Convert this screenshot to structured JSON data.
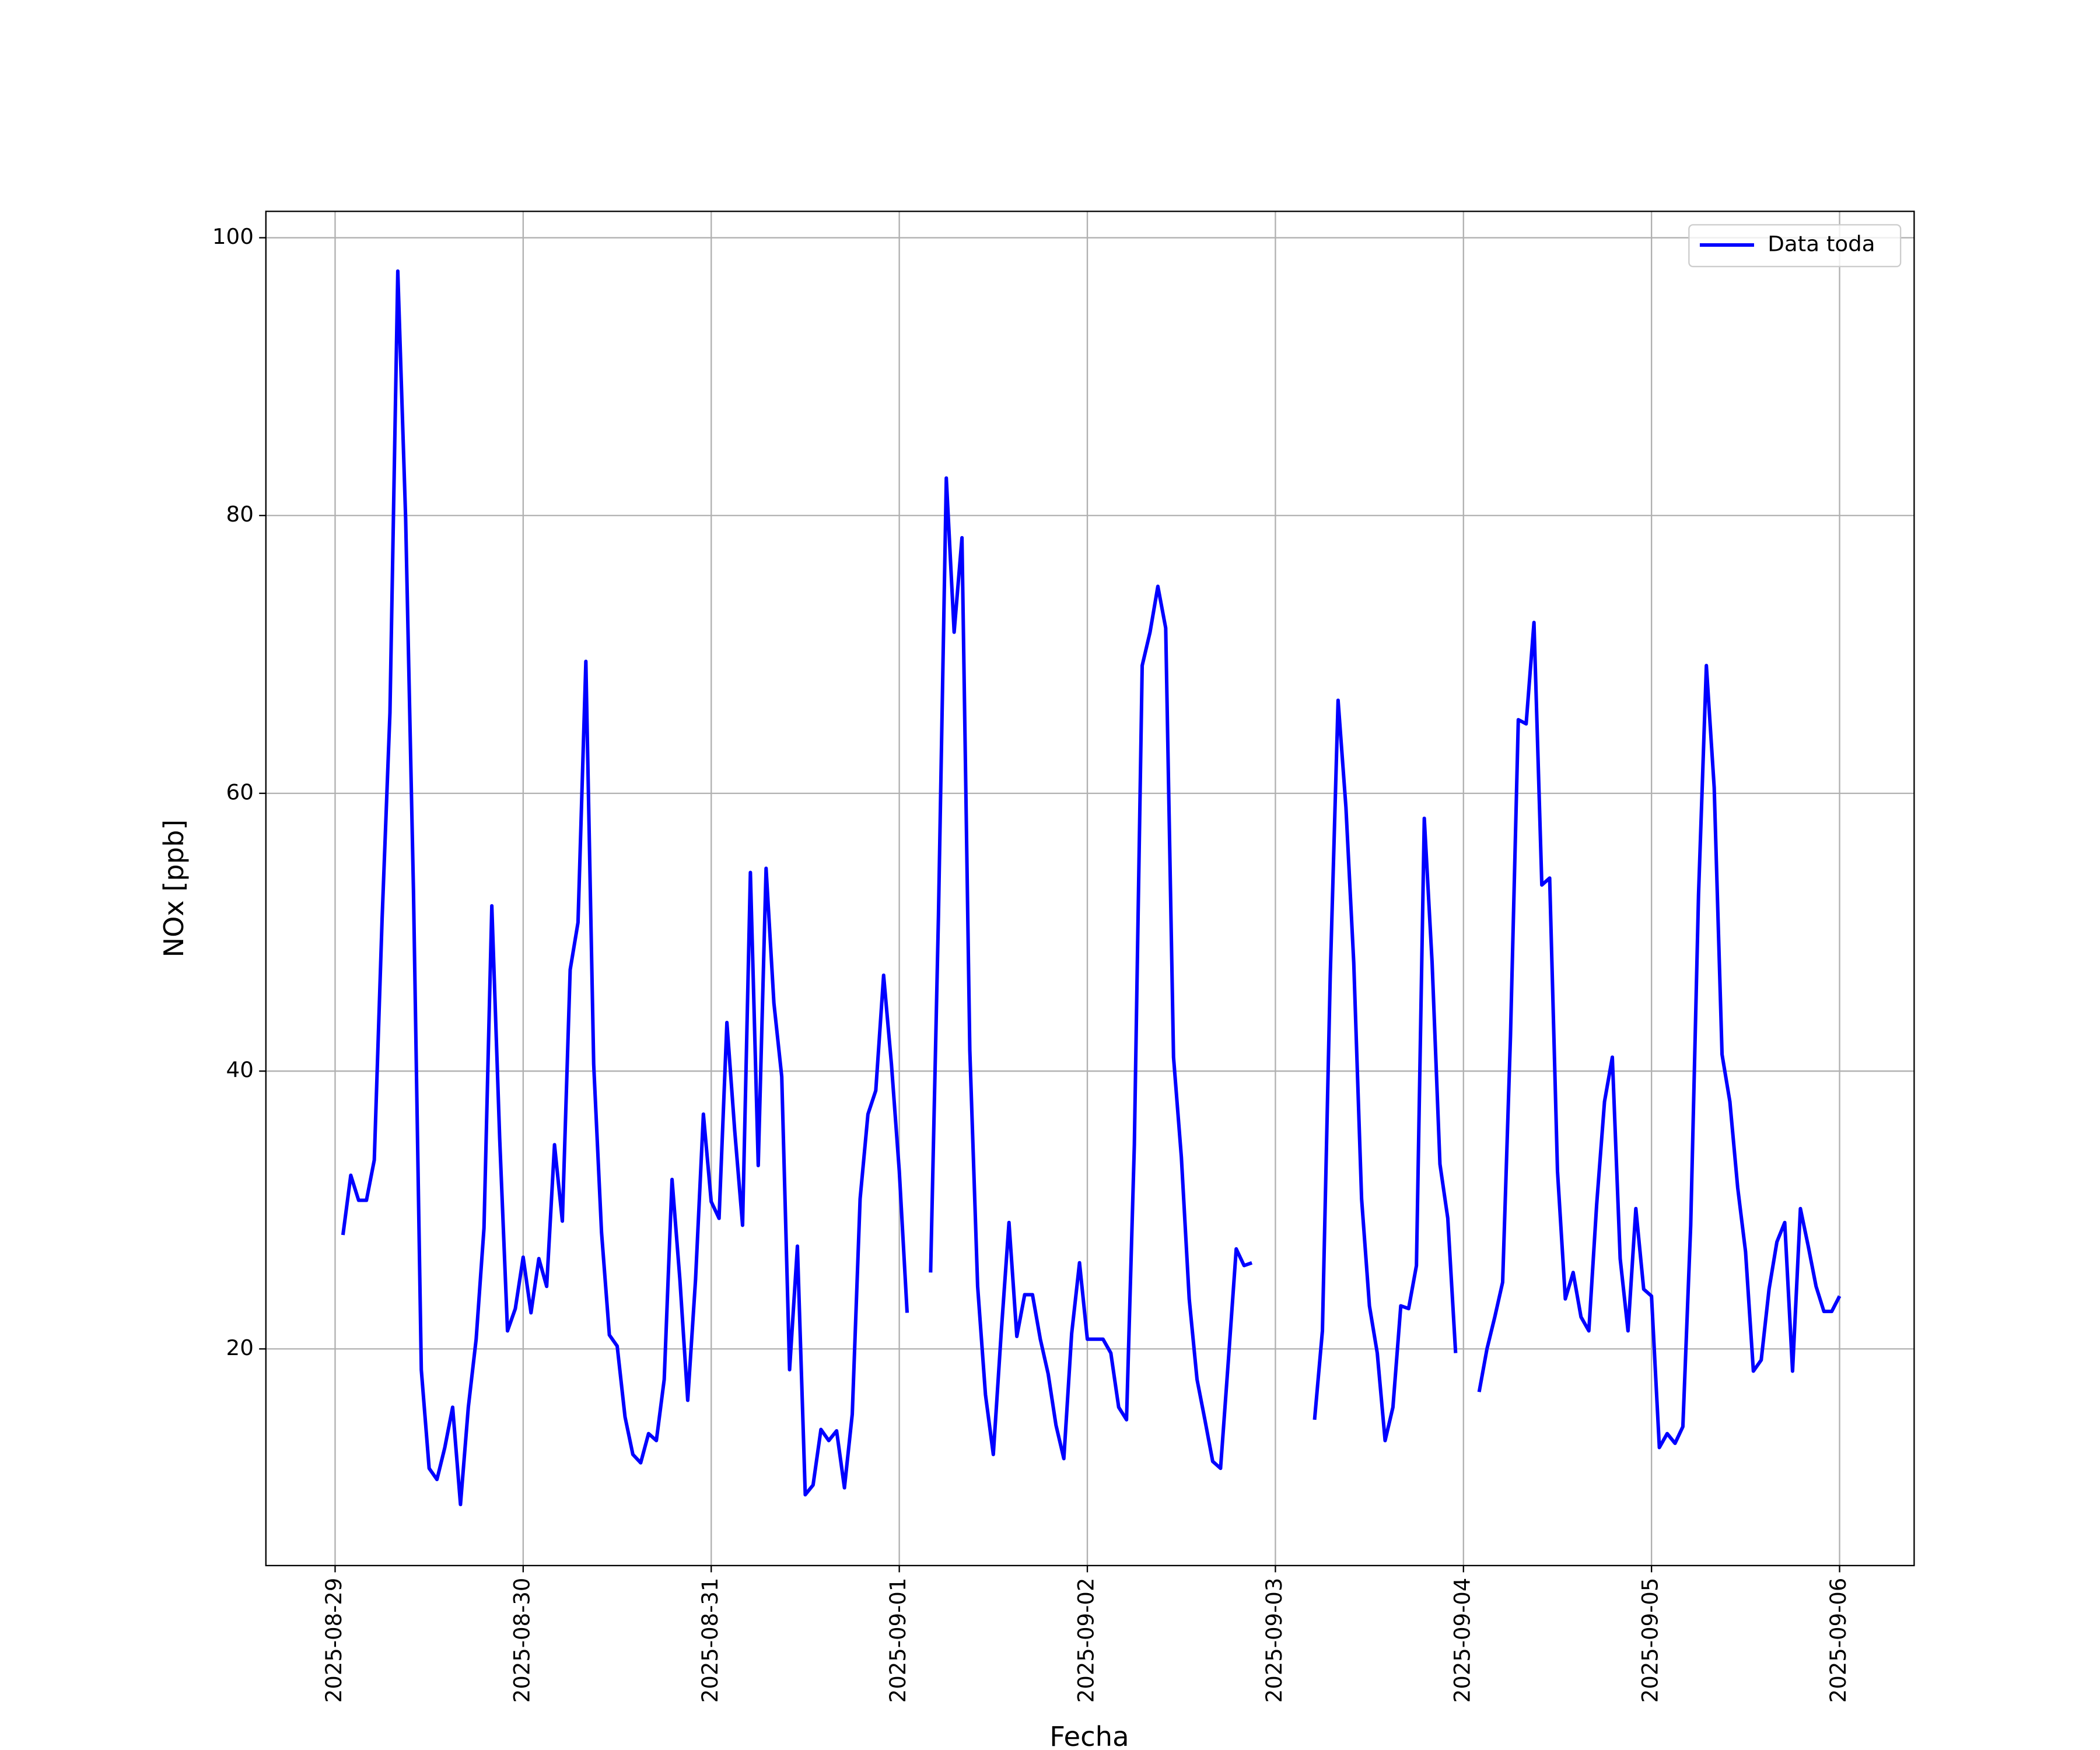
{
  "chart_data": {
    "type": "line",
    "xlabel": "Fecha",
    "ylabel": "NOx [ppb]",
    "legend": "upper right",
    "grid": true,
    "xlim": [
      "2025-08-28 15:10",
      "2025-09-06 09:31"
    ],
    "xticks": [
      "2025-08-29",
      "2025-08-30",
      "2025-08-31",
      "2025-09-01",
      "2025-09-02",
      "2025-09-03",
      "2025-09-04",
      "2025-09-05",
      "2025-09-06"
    ],
    "ylim": [
      4.4,
      101.9
    ],
    "yticks": [
      20,
      40,
      60,
      80,
      100
    ],
    "x": [
      "2025-08-29 01:00",
      "2025-08-29 02:00",
      "2025-08-29 03:00",
      "2025-08-29 04:00",
      "2025-08-29 05:00",
      "2025-08-29 06:00",
      "2025-08-29 07:00",
      "2025-08-29 08:00",
      "2025-08-29 09:00",
      "2025-08-29 10:00",
      "2025-08-29 11:00",
      "2025-08-29 12:00",
      "2025-08-29 13:00",
      "2025-08-29 14:00",
      "2025-08-29 15:00",
      "2025-08-29 16:00",
      "2025-08-29 17:00",
      "2025-08-29 18:00",
      "2025-08-29 19:00",
      "2025-08-29 20:00",
      "2025-08-29 21:00",
      "2025-08-29 22:00",
      "2025-08-29 23:00",
      "2025-08-30 00:00",
      "2025-08-30 01:00",
      "2025-08-30 02:00",
      "2025-08-30 03:00",
      "2025-08-30 04:00",
      "2025-08-30 05:00",
      "2025-08-30 06:00",
      "2025-08-30 07:00",
      "2025-08-30 08:00",
      "2025-08-30 09:00",
      "2025-08-30 10:00",
      "2025-08-30 11:00",
      "2025-08-30 12:00",
      "2025-08-30 13:00",
      "2025-08-30 14:00",
      "2025-08-30 15:00",
      "2025-08-30 16:00",
      "2025-08-30 17:00",
      "2025-08-30 18:00",
      "2025-08-30 19:00",
      "2025-08-30 20:00",
      "2025-08-30 21:00",
      "2025-08-30 22:00",
      "2025-08-30 23:00",
      "2025-08-31 00:00",
      "2025-08-31 01:00",
      "2025-08-31 02:00",
      "2025-08-31 03:00",
      "2025-08-31 04:00",
      "2025-08-31 05:00",
      "2025-08-31 06:00",
      "2025-08-31 07:00",
      "2025-08-31 08:00",
      "2025-08-31 09:00",
      "2025-08-31 10:00",
      "2025-08-31 11:00",
      "2025-08-31 12:00",
      "2025-08-31 13:00",
      "2025-08-31 14:00",
      "2025-08-31 15:00",
      "2025-08-31 16:00",
      "2025-08-31 17:00",
      "2025-08-31 18:00",
      "2025-08-31 19:00",
      "2025-08-31 20:00",
      "2025-08-31 21:00",
      "2025-08-31 22:00",
      "2025-08-31 23:00",
      "2025-09-01 00:00",
      "2025-09-01 01:00",
      "2025-09-01 02:00",
      "2025-09-01 03:00",
      "2025-09-01 04:00",
      "2025-09-01 05:00",
      "2025-09-01 06:00",
      "2025-09-01 07:00",
      "2025-09-01 08:00",
      "2025-09-01 09:00",
      "2025-09-01 10:00",
      "2025-09-01 11:00",
      "2025-09-01 12:00",
      "2025-09-01 13:00",
      "2025-09-01 14:00",
      "2025-09-01 15:00",
      "2025-09-01 16:00",
      "2025-09-01 17:00",
      "2025-09-01 18:00",
      "2025-09-01 19:00",
      "2025-09-01 20:00",
      "2025-09-01 21:00",
      "2025-09-01 22:00",
      "2025-09-01 23:00",
      "2025-09-02 00:00",
      "2025-09-02 01:00",
      "2025-09-02 02:00",
      "2025-09-02 03:00",
      "2025-09-02 04:00",
      "2025-09-02 05:00",
      "2025-09-02 06:00",
      "2025-09-02 07:00",
      "2025-09-02 08:00",
      "2025-09-02 09:00",
      "2025-09-02 10:00",
      "2025-09-02 11:00",
      "2025-09-02 12:00",
      "2025-09-02 13:00",
      "2025-09-02 14:00",
      "2025-09-02 15:00",
      "2025-09-02 16:00",
      "2025-09-02 17:00",
      "2025-09-02 18:00",
      "2025-09-02 19:00",
      "2025-09-02 20:00",
      "2025-09-02 21:00",
      "2025-09-02 22:00",
      "2025-09-02 23:00",
      "2025-09-03 00:00",
      "2025-09-03 01:00",
      "2025-09-03 02:00",
      "2025-09-03 03:00",
      "2025-09-03 04:00",
      "2025-09-03 05:00",
      "2025-09-03 06:00",
      "2025-09-03 07:00",
      "2025-09-03 08:00",
      "2025-09-03 09:00",
      "2025-09-03 10:00",
      "2025-09-03 11:00",
      "2025-09-03 12:00",
      "2025-09-03 13:00",
      "2025-09-03 14:00",
      "2025-09-03 15:00",
      "2025-09-03 16:00",
      "2025-09-03 17:00",
      "2025-09-03 18:00",
      "2025-09-03 19:00",
      "2025-09-03 20:00",
      "2025-09-03 21:00",
      "2025-09-03 22:00",
      "2025-09-03 23:00",
      "2025-09-04 00:00",
      "2025-09-04 01:00",
      "2025-09-04 02:00",
      "2025-09-04 03:00",
      "2025-09-04 04:00",
      "2025-09-04 05:00",
      "2025-09-04 06:00",
      "2025-09-04 07:00",
      "2025-09-04 08:00",
      "2025-09-04 09:00",
      "2025-09-04 10:00",
      "2025-09-04 11:00",
      "2025-09-04 12:00",
      "2025-09-04 13:00",
      "2025-09-04 14:00",
      "2025-09-04 15:00",
      "2025-09-04 16:00",
      "2025-09-04 17:00",
      "2025-09-04 18:00",
      "2025-09-04 19:00",
      "2025-09-04 20:00",
      "2025-09-04 21:00",
      "2025-09-04 22:00",
      "2025-09-04 23:00",
      "2025-09-05 00:00",
      "2025-09-05 01:00",
      "2025-09-05 02:00",
      "2025-09-05 03:00",
      "2025-09-05 04:00",
      "2025-09-05 05:00",
      "2025-09-05 06:00",
      "2025-09-05 07:00",
      "2025-09-05 08:00",
      "2025-09-05 09:00",
      "2025-09-05 10:00",
      "2025-09-05 11:00",
      "2025-09-05 12:00",
      "2025-09-05 13:00",
      "2025-09-05 14:00",
      "2025-09-05 15:00",
      "2025-09-05 16:00",
      "2025-09-05 17:00",
      "2025-09-05 18:00",
      "2025-09-05 19:00",
      "2025-09-05 20:00",
      "2025-09-05 21:00",
      "2025-09-05 22:00",
      "2025-09-05 23:00",
      "2025-09-06 00:00"
    ],
    "series": [
      {
        "name": "Data toda",
        "color": "#0000ff",
        "values": [
          28.2,
          32.5,
          30.7,
          30.7,
          33.6,
          51,
          65.8,
          97.6,
          79.8,
          53,
          18.5,
          11.4,
          10.6,
          12.9,
          15.8,
          8.8,
          15.8,
          20.7,
          28.7,
          51.9,
          35.2,
          21.3,
          22.9,
          26.6,
          22.6,
          26.5,
          24.5,
          34.7,
          29.2,
          47.3,
          50.7,
          69.5,
          40.5,
          28.4,
          21,
          20.2,
          15.1,
          12.4,
          11.8,
          13.9,
          13.4,
          17.8,
          32.2,
          25,
          16.3,
          25,
          36.9,
          30.6,
          29.4,
          43.5,
          35.7,
          28.9,
          54.3,
          33.2,
          54.6,
          44.9,
          39.6,
          18.5,
          27.4,
          9.5,
          10.2,
          14.2,
          13.4,
          14.1,
          10,
          15.3,
          30.8,
          36.9,
          38.6,
          46.9,
          40.5,
          32.8,
          22.6,
          null,
          null,
          25.5,
          51.2,
          82.7,
          71.6,
          78.4,
          41.5,
          24.5,
          16.7,
          12.4,
          21.1,
          29.1,
          20.9,
          23.9,
          23.9,
          20.7,
          18.2,
          14.5,
          12.1,
          21.1,
          26.2,
          20.7,
          20.7,
          20.7,
          19.7,
          15.8,
          14.9,
          34.7,
          69.2,
          71.6,
          74.9,
          71.9,
          41,
          33.8,
          23.6,
          17.8,
          14.9,
          11.9,
          11.4,
          19.2,
          27.2,
          26,
          26.2,
          null,
          null,
          null,
          null,
          null,
          null,
          null,
          14.9,
          21.3,
          46.9,
          66.7,
          59,
          47.8,
          30.8,
          23.1,
          19.7,
          13.4,
          15.8,
          23.1,
          22.9,
          26,
          58.2,
          47.8,
          33.3,
          29.4,
          19.7,
          null,
          null,
          16.9,
          20,
          22.3,
          24.8,
          42.5,
          65.3,
          65,
          72.3,
          53.4,
          53.9,
          32.8,
          23.6,
          25.5,
          22.3,
          21.3,
          30.4,
          37.8,
          41,
          26.5,
          21.3,
          30.1,
          24.3,
          23.8,
          12.9,
          13.9,
          13.2,
          14.4,
          28.9,
          52.7,
          69.2,
          60.4,
          41.2,
          37.8,
          31.6,
          27,
          18.4,
          19.2,
          24.3,
          27.7,
          29.1,
          18.4,
          30.1,
          27.4,
          24.5,
          22.7,
          22.7,
          23.8
        ]
      }
    ]
  }
}
